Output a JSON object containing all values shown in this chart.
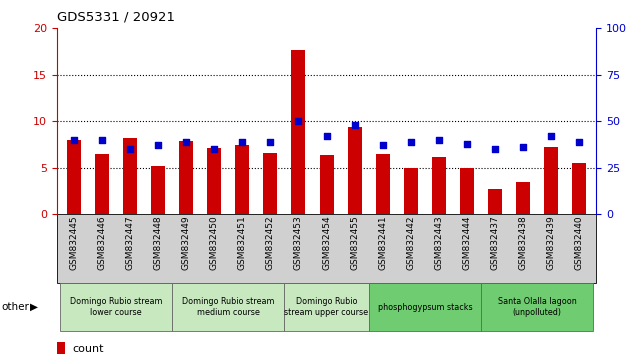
{
  "title": "GDS5331 / 20921",
  "samples": [
    "GSM832445",
    "GSM832446",
    "GSM832447",
    "GSM832448",
    "GSM832449",
    "GSM832450",
    "GSM832451",
    "GSM832452",
    "GSM832453",
    "GSM832454",
    "GSM832455",
    "GSM832441",
    "GSM832442",
    "GSM832443",
    "GSM832444",
    "GSM832437",
    "GSM832438",
    "GSM832439",
    "GSM832440"
  ],
  "counts": [
    8.0,
    6.5,
    8.2,
    5.2,
    7.9,
    7.1,
    7.4,
    6.6,
    17.7,
    6.4,
    9.4,
    6.5,
    5.0,
    6.1,
    5.0,
    2.7,
    3.5,
    7.2,
    5.5
  ],
  "percentiles_pct": [
    40,
    40,
    35,
    37,
    39,
    35,
    39,
    39,
    50,
    42,
    48,
    37,
    39,
    40,
    38,
    35,
    36,
    42,
    39
  ],
  "groups": [
    {
      "label": "Domingo Rubio stream\nlower course",
      "start": 0,
      "end": 3,
      "color": "#c8e8c0"
    },
    {
      "label": "Domingo Rubio stream\nmedium course",
      "start": 4,
      "end": 7,
      "color": "#c8e8c0"
    },
    {
      "label": "Domingo Rubio\nstream upper course",
      "start": 8,
      "end": 10,
      "color": "#c8e8c0"
    },
    {
      "label": "phosphogypsum stacks",
      "start": 11,
      "end": 14,
      "color": "#70cc70"
    },
    {
      "label": "Santa Olalla lagoon\n(unpolluted)",
      "start": 15,
      "end": 18,
      "color": "#70cc70"
    }
  ],
  "bar_color": "#cc0000",
  "dot_color": "#0000cc",
  "ylim_left": [
    0,
    20
  ],
  "ylim_right": [
    0,
    100
  ],
  "yticks_left": [
    0,
    5,
    10,
    15,
    20
  ],
  "yticks_right": [
    0,
    25,
    50,
    75,
    100
  ],
  "dotted_lines": [
    5,
    10,
    15
  ],
  "left_axis_color": "#cc0000",
  "right_axis_color": "#0000cc",
  "tick_label_bg": "#d0d0d0",
  "bar_width": 0.5
}
